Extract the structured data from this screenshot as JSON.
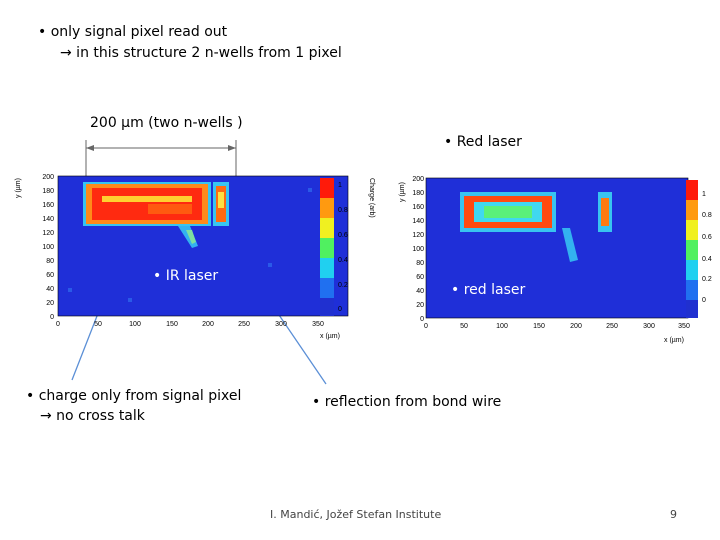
{
  "slide": {
    "bullets_top": [
      "• only signal pixel read out",
      "→ in this structure 2 n-wells from 1 pixel"
    ],
    "dimension_label": "200 µm (two n-wells )",
    "red_laser_heading": "• Red laser",
    "ir_laser_label": "• IR laser",
    "red_laser_label": "• red laser",
    "note_left": [
      "• charge only from signal pixel",
      "→ no cross talk"
    ],
    "note_right": "• reflection from bond wire",
    "footer": "I. Mandić, Jožef Stefan Institute",
    "page_number": "9"
  },
  "plots": {
    "left": {
      "y_axis_title": "y (µm)",
      "x_axis_title": "x (µm)",
      "z_axis_title": "Charge (arb)",
      "y_ticks": [
        "200",
        "180",
        "160",
        "140",
        "120",
        "100",
        "80",
        "60",
        "40",
        "20",
        "0"
      ],
      "x_ticks": [
        "0",
        "50",
        "100",
        "150",
        "200",
        "250",
        "300",
        "350"
      ],
      "z_ticks": [
        "1",
        "0.8",
        "0.6",
        "0.4",
        "0.2",
        "0"
      ]
    },
    "right": {
      "y_axis_title": "y (µm)",
      "x_axis_title": "x (µm)",
      "y_ticks": [
        "200",
        "180",
        "160",
        "140",
        "120",
        "100",
        "80",
        "60",
        "40",
        "20",
        "0"
      ],
      "x_ticks": [
        "0",
        "50",
        "100",
        "150",
        "200",
        "250",
        "300",
        "350"
      ],
      "z_ticks": [
        "1",
        "0.8",
        "0.6",
        "0.4",
        "0.2",
        "0"
      ]
    }
  },
  "colors": {
    "map_background": "#1f2fd8",
    "arrow_line": "#5b8fd6"
  }
}
